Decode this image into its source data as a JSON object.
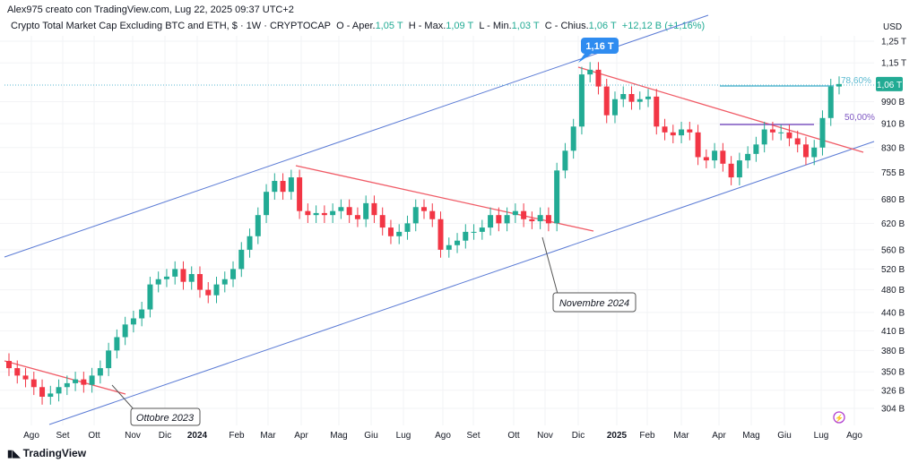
{
  "header": {
    "author_line": "Alex975 creato con TradingView.com, Lug 22, 2025 09:37 UTC+2",
    "symbol": "Crypto Total Market Cap Excluding BTC and ETH, $ · 1W · CRYPTOCAP",
    "o_label": "O - Aper.",
    "o": "1,05 T",
    "h_label": "H - Max.",
    "h": "1,09 T",
    "l_label": "L - Min.",
    "l": "1,03 T",
    "c_label": "C - Chius.",
    "c": "1,06 T",
    "change": "+12,12 B (+1,16%)"
  },
  "footer": {
    "logo": "TradingView"
  },
  "colors": {
    "up": "#22ab94",
    "down": "#f23645",
    "channel": "#5b7bd5",
    "trend": "#f05b66",
    "fib78": "#5ab9d0",
    "fib50": "#7e57c2",
    "callout": "#2f8cf0"
  },
  "chart_data": {
    "type": "candlestick",
    "scale": "log",
    "currency": "USD",
    "yticks": [
      {
        "v": 1250,
        "label": "1,25 T"
      },
      {
        "v": 1150,
        "label": "1,15 T"
      },
      {
        "v": 990,
        "label": "990 B"
      },
      {
        "v": 910,
        "label": "910 B"
      },
      {
        "v": 830,
        "label": "830 B"
      },
      {
        "v": 755,
        "label": "755 B"
      },
      {
        "v": 680,
        "label": "680 B"
      },
      {
        "v": 620,
        "label": "620 B"
      },
      {
        "v": 560,
        "label": "560 B"
      },
      {
        "v": 520,
        "label": "520 B"
      },
      {
        "v": 480,
        "label": "480 B"
      },
      {
        "v": 440,
        "label": "440 B"
      },
      {
        "v": 410,
        "label": "410 B"
      },
      {
        "v": 380,
        "label": "380 B"
      },
      {
        "v": 350,
        "label": "350 B"
      },
      {
        "v": 326,
        "label": "326 B"
      },
      {
        "v": 304,
        "label": "304 B"
      }
    ],
    "last_price": {
      "v": 1060,
      "label": "1,06 T"
    },
    "xticks": [
      "Ago",
      "Set",
      "Ott",
      "Nov",
      "Dic",
      "2024",
      "Feb",
      "Mar",
      "Apr",
      "Mag",
      "Giu",
      "Lug",
      "Ago",
      "Set",
      "Ott",
      "Nov",
      "Dic",
      "2025",
      "Feb",
      "Mar",
      "Apr",
      "Mag",
      "Giu",
      "Lug",
      "Ago"
    ],
    "first_open": 365,
    "closes_billion": [
      355,
      345,
      340,
      330,
      318,
      322,
      330,
      335,
      340,
      333,
      345,
      355,
      380,
      400,
      420,
      430,
      445,
      490,
      500,
      505,
      520,
      495,
      510,
      480,
      470,
      490,
      500,
      520,
      560,
      590,
      640,
      700,
      730,
      700,
      740,
      650,
      640,
      645,
      640,
      650,
      660,
      640,
      630,
      670,
      640,
      610,
      590,
      600,
      620,
      660,
      650,
      630,
      560,
      570,
      580,
      600,
      600,
      610,
      640,
      620,
      640,
      650,
      630,
      625,
      640,
      620,
      760,
      820,
      900,
      1100,
      1120,
      1050,
      940,
      1000,
      1020,
      990,
      1000,
      1010,
      900,
      880,
      870,
      890,
      880,
      800,
      790,
      820,
      780,
      740,
      790,
      810,
      840,
      890,
      880,
      880,
      860,
      840,
      800,
      830,
      930,
      1050,
      1060
    ],
    "annotations": {
      "peak": "1,16 T",
      "fib78": "78,60%",
      "fib50": "50,00%",
      "nov": "Novembre 2024",
      "oct": "Ottobre 2023"
    }
  }
}
